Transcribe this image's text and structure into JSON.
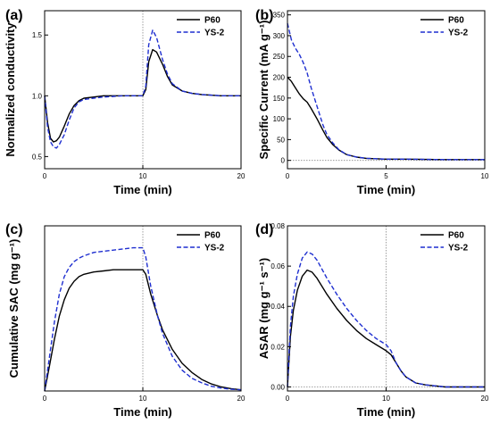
{
  "colors": {
    "P60": "#000000",
    "YS-2": "#1f2fd0"
  },
  "chart_data": [
    {
      "panel": "(a)",
      "type": "line",
      "xlabel": "Time (min)",
      "ylabel": "Normalized conductivity",
      "xlim": [
        0,
        20
      ],
      "ylim": [
        0.4,
        1.7
      ],
      "xticks": [
        0,
        10,
        20
      ],
      "yticks": [
        0.5,
        1.0,
        1.5
      ],
      "ytick_labels": [
        "0.5",
        "1.0",
        "1.5"
      ],
      "vline": 10,
      "hline": null,
      "legend": "top-right",
      "series": [
        {
          "name": "P60",
          "style": "solid",
          "x": [
            0,
            0.3,
            0.6,
            0.9,
            1.2,
            1.5,
            2,
            2.5,
            3,
            3.5,
            4,
            5,
            6,
            7,
            8,
            9,
            10,
            10.3,
            10.6,
            11,
            11.4,
            12,
            12.5,
            13,
            14,
            15,
            16,
            18,
            20
          ],
          "y": [
            1.0,
            0.78,
            0.65,
            0.62,
            0.63,
            0.66,
            0.75,
            0.85,
            0.92,
            0.96,
            0.98,
            0.99,
            1.0,
            1.0,
            1.0,
            1.0,
            1.0,
            1.05,
            1.28,
            1.38,
            1.36,
            1.26,
            1.16,
            1.09,
            1.04,
            1.02,
            1.01,
            1.0,
            1.0
          ]
        },
        {
          "name": "YS-2",
          "style": "dashed",
          "x": [
            0,
            0.3,
            0.6,
            0.9,
            1.2,
            1.5,
            2,
            2.5,
            3,
            3.5,
            4,
            5,
            6,
            7,
            8,
            9,
            10,
            10.3,
            10.6,
            11,
            11.4,
            12,
            12.5,
            13,
            14,
            15,
            16,
            18,
            20
          ],
          "y": [
            1.0,
            0.74,
            0.62,
            0.58,
            0.57,
            0.6,
            0.68,
            0.8,
            0.9,
            0.95,
            0.97,
            0.98,
            0.99,
            0.995,
            1.0,
            1.0,
            1.0,
            1.08,
            1.42,
            1.54,
            1.48,
            1.3,
            1.18,
            1.1,
            1.04,
            1.02,
            1.01,
            1.0,
            1.0
          ]
        }
      ]
    },
    {
      "panel": "(b)",
      "type": "line",
      "xlabel": "Time (min)",
      "ylabel": "Specific Current (mA g⁻¹)",
      "xlim": [
        0,
        10
      ],
      "ylim": [
        -20,
        360
      ],
      "xticks": [
        0,
        5,
        10
      ],
      "yticks": [
        0,
        50,
        100,
        150,
        200,
        250,
        300,
        350
      ],
      "ytick_labels": [
        "0",
        "50",
        "100",
        "150",
        "200",
        "250",
        "300",
        "350"
      ],
      "vline": null,
      "hline": 0,
      "legend": "top-right",
      "series": [
        {
          "name": "P60",
          "style": "solid",
          "x": [
            0,
            0.2,
            0.4,
            0.6,
            0.8,
            1.0,
            1.2,
            1.5,
            1.8,
            2.0,
            2.3,
            2.6,
            3.0,
            3.5,
            4.0,
            5.0,
            6.0,
            8.0,
            10.0
          ],
          "y": [
            200,
            190,
            175,
            160,
            148,
            140,
            125,
            100,
            72,
            55,
            38,
            25,
            14,
            8,
            5,
            3,
            3,
            2,
            2
          ]
        },
        {
          "name": "YS-2",
          "style": "dashed",
          "x": [
            0,
            0.1,
            0.2,
            0.4,
            0.6,
            0.8,
            1.0,
            1.2,
            1.5,
            1.8,
            2.0,
            2.3,
            2.6,
            3.0,
            3.5,
            4.0,
            5.0,
            6.0,
            8.0,
            10.0
          ],
          "y": [
            330,
            310,
            290,
            270,
            255,
            235,
            210,
            175,
            130,
            85,
            62,
            42,
            26,
            14,
            8,
            5,
            3,
            3,
            2,
            2
          ]
        }
      ]
    },
    {
      "panel": "(c)",
      "type": "line",
      "xlabel": "Time (min)",
      "ylabel": "Cumulative SAC (mg g⁻¹)",
      "xlim": [
        0,
        20
      ],
      "ylim": [
        0,
        14.3
      ],
      "xticks": [
        0,
        10,
        20
      ],
      "yticks": [],
      "ytick_labels": [],
      "vline": 10,
      "hline": null,
      "legend": "top-right",
      "series": [
        {
          "name": "P60",
          "style": "solid",
          "x": [
            0,
            0.5,
            1,
            1.5,
            2,
            2.5,
            3,
            3.5,
            4,
            5,
            6,
            7,
            8,
            9,
            10,
            10.3,
            10.8,
            11.5,
            12,
            13,
            14,
            15,
            16,
            17,
            18,
            19,
            20
          ],
          "y": [
            0,
            2.2,
            4.5,
            6.5,
            7.9,
            8.9,
            9.5,
            9.9,
            10.1,
            10.3,
            10.4,
            10.5,
            10.5,
            10.5,
            10.5,
            10.1,
            8.4,
            6.5,
            5.3,
            3.6,
            2.4,
            1.6,
            1.0,
            0.6,
            0.35,
            0.2,
            0.1
          ]
        },
        {
          "name": "YS-2",
          "style": "dashed",
          "x": [
            0,
            0.5,
            1,
            1.5,
            2,
            2.5,
            3,
            3.5,
            4,
            5,
            6,
            7,
            8,
            9,
            10,
            10.3,
            10.8,
            11.5,
            12,
            13,
            14,
            15,
            16,
            17,
            18,
            19,
            20
          ],
          "y": [
            0,
            3.0,
            6.0,
            8.4,
            9.9,
            10.7,
            11.2,
            11.5,
            11.7,
            12.0,
            12.1,
            12.2,
            12.3,
            12.4,
            12.4,
            11.6,
            9.1,
            6.5,
            5.0,
            3.0,
            1.8,
            1.1,
            0.7,
            0.4,
            0.25,
            0.15,
            0.1
          ]
        }
      ]
    },
    {
      "panel": "(d)",
      "type": "line",
      "xlabel": "Time (min)",
      "ylabel": "ASAR (mg g⁻¹ s⁻¹)",
      "xlim": [
        0,
        20
      ],
      "ylim": [
        -0.002,
        0.08
      ],
      "xticks": [
        0,
        10,
        20
      ],
      "yticks": [
        0.0,
        0.02,
        0.04,
        0.06,
        0.08
      ],
      "ytick_labels": [
        "0.00",
        "0.02",
        "0.04",
        "0.06",
        "0.08"
      ],
      "vline": 10,
      "hline": 0,
      "legend": "top-right",
      "series": [
        {
          "name": "P60",
          "style": "solid",
          "x": [
            0,
            0.3,
            0.6,
            1,
            1.5,
            2,
            2.5,
            3,
            4,
            5,
            6,
            7,
            8,
            9,
            10,
            10.5,
            11,
            11.5,
            12,
            13,
            14,
            16,
            18,
            20
          ],
          "y": [
            0,
            0.025,
            0.038,
            0.048,
            0.055,
            0.058,
            0.057,
            0.054,
            0.046,
            0.039,
            0.033,
            0.028,
            0.024,
            0.021,
            0.018,
            0.016,
            0.012,
            0.008,
            0.005,
            0.002,
            0.001,
            0.0,
            0.0,
            0.0
          ]
        },
        {
          "name": "YS-2",
          "style": "dashed",
          "x": [
            0,
            0.3,
            0.6,
            1,
            1.5,
            2,
            2.5,
            3,
            4,
            5,
            6,
            7,
            8,
            9,
            10,
            10.5,
            11,
            11.5,
            12,
            13,
            14,
            16,
            18,
            20
          ],
          "y": [
            0,
            0.03,
            0.045,
            0.056,
            0.064,
            0.067,
            0.066,
            0.063,
            0.054,
            0.046,
            0.039,
            0.033,
            0.028,
            0.024,
            0.021,
            0.018,
            0.012,
            0.008,
            0.005,
            0.002,
            0.001,
            0.0,
            0.0,
            0.0
          ]
        }
      ]
    }
  ]
}
